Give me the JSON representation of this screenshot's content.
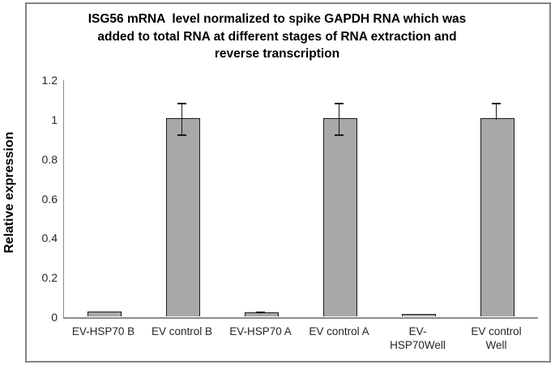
{
  "chart_data": {
    "type": "bar",
    "title": "ISG56 mRNA  level normalized to spike GAPDH RNA which was added to total RNA at different stages of RNA extraction and reverse transcription",
    "title_lines": [
      "ISG56 mRNA  level normalized to spike GAPDH RNA which was",
      "added to total RNA at different stages of RNA extraction and",
      "reverse transcription"
    ],
    "ylabel": "Relative expression",
    "xlabel": "",
    "categories": [
      "EV-HSP70 B",
      "EV control B",
      "EV-HSP70 A",
      "EV control A",
      "EV-HSP70Well",
      "EV control Well"
    ],
    "values": [
      0.02,
      1.0,
      0.016,
      1.0,
      0.008,
      1.0
    ],
    "error_plus": [
      0,
      0.08,
      0.008,
      0.08,
      0,
      0.08
    ],
    "error_minus": [
      0,
      0.08,
      0,
      0.08,
      0,
      0
    ],
    "ylim": [
      0,
      1.2
    ],
    "yticks": [
      0,
      0.2,
      0.4,
      0.6,
      0.8,
      1,
      1.2
    ],
    "ytick_labels": [
      "0",
      "0.2",
      "0.4",
      "0.6",
      "0.8",
      "1",
      "1.2"
    ],
    "grid": false,
    "legend": false,
    "colors": {
      "bar_fill": "#a8a8a8",
      "bar_border": "#1a1a1a",
      "error_bar": "#1a1a1a",
      "axis_line": "#8c8c8c",
      "frame_border": "#848484",
      "text": "#262626",
      "title_text": "#000000"
    }
  }
}
